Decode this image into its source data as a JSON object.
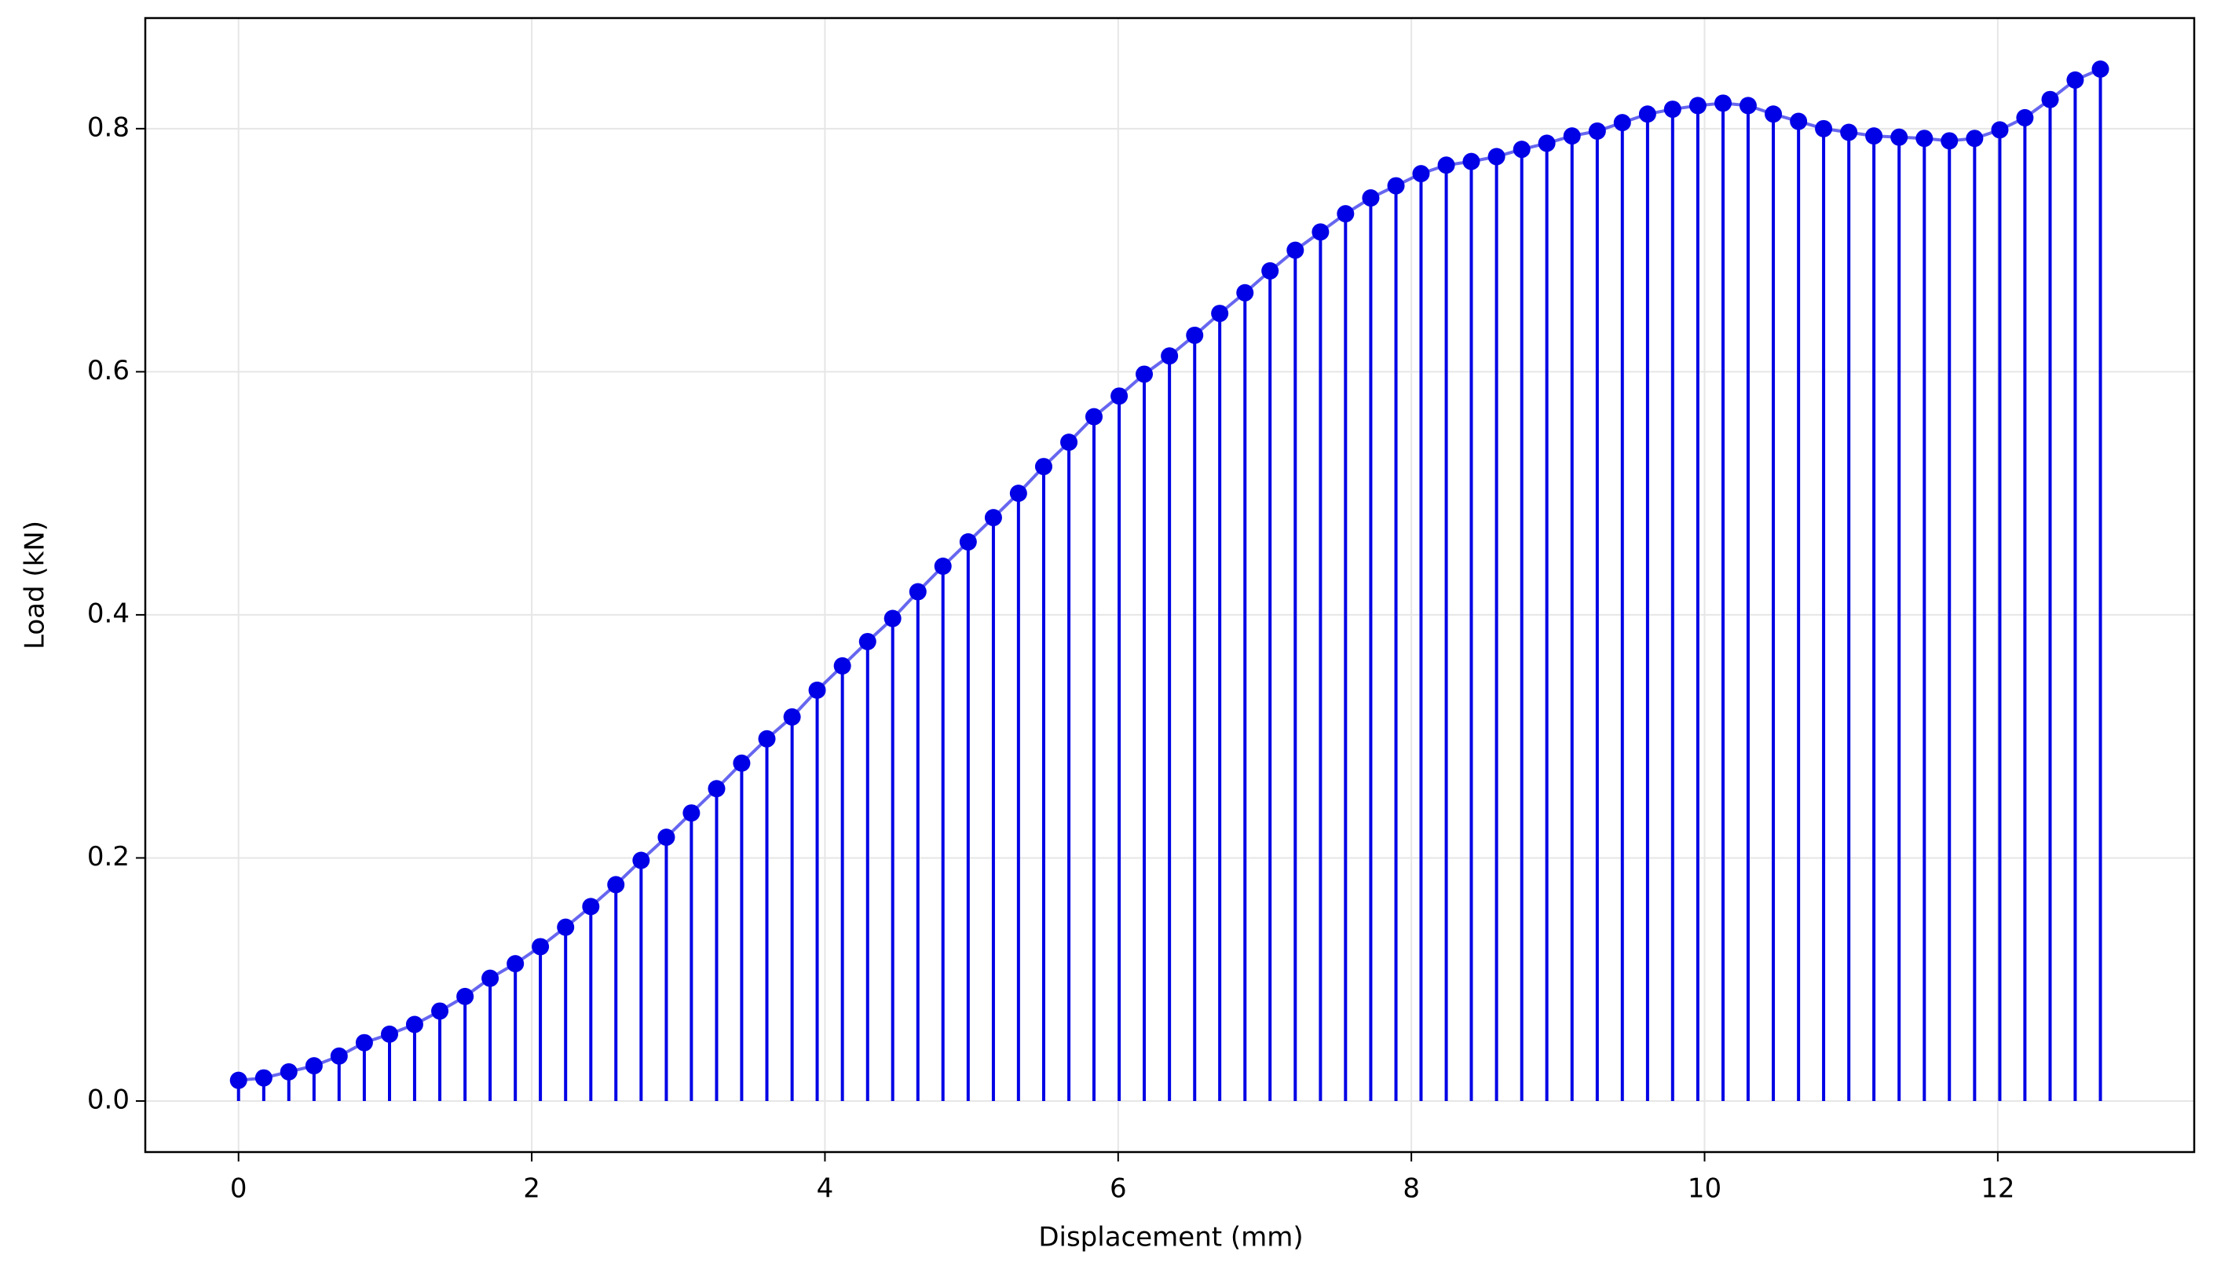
{
  "chart_data": {
    "type": "stem",
    "xlabel": "Displacement (mm)",
    "ylabel": "Load (kN)",
    "x": [
      0,
      0.172,
      0.343,
      0.515,
      0.686,
      0.858,
      1.03,
      1.201,
      1.373,
      1.545,
      1.716,
      1.888,
      2.059,
      2.231,
      2.403,
      2.574,
      2.746,
      2.918,
      3.089,
      3.261,
      3.432,
      3.604,
      3.776,
      3.947,
      4.119,
      4.291,
      4.462,
      4.634,
      4.805,
      4.977,
      5.149,
      5.32,
      5.492,
      5.664,
      5.835,
      6.007,
      6.178,
      6.35,
      6.522,
      6.693,
      6.865,
      7.036,
      7.208,
      7.38,
      7.551,
      7.723,
      7.895,
      8.066,
      8.238,
      8.409,
      8.581,
      8.753,
      8.924,
      9.096,
      9.268,
      9.439,
      9.611,
      9.782,
      9.954,
      10.126,
      10.297,
      10.469,
      10.641,
      10.812,
      10.984,
      11.155,
      11.327,
      11.499,
      11.67,
      11.842,
      12.014,
      12.185,
      12.357,
      12.528,
      12.7
    ],
    "values": [
      0.017,
      0.019,
      0.024,
      0.029,
      0.037,
      0.048,
      0.055,
      0.063,
      0.074,
      0.086,
      0.101,
      0.113,
      0.127,
      0.143,
      0.16,
      0.178,
      0.198,
      0.217,
      0.237,
      0.257,
      0.278,
      0.298,
      0.316,
      0.338,
      0.358,
      0.378,
      0.397,
      0.419,
      0.44,
      0.46,
      0.48,
      0.5,
      0.522,
      0.542,
      0.563,
      0.58,
      0.598,
      0.613,
      0.63,
      0.648,
      0.665,
      0.683,
      0.7,
      0.715,
      0.73,
      0.743,
      0.753,
      0.763,
      0.77,
      0.773,
      0.777,
      0.783,
      0.788,
      0.794,
      0.798,
      0.805,
      0.812,
      0.816,
      0.819,
      0.821,
      0.819,
      0.812,
      0.806,
      0.8,
      0.797,
      0.794,
      0.793,
      0.792,
      0.79,
      0.792,
      0.799,
      0.809,
      0.824,
      0.84,
      0.849
    ],
    "color": "#0000e6",
    "xlim": [
      -0.636,
      13.34
    ],
    "ylim": [
      -0.042,
      0.891
    ],
    "xticks": [
      0,
      2,
      4,
      6,
      8,
      10,
      12
    ],
    "yticks": [
      {
        "value": 0,
        "label": "0.0"
      },
      0.2,
      0.4,
      0.6,
      0.8
    ],
    "grid": true
  }
}
